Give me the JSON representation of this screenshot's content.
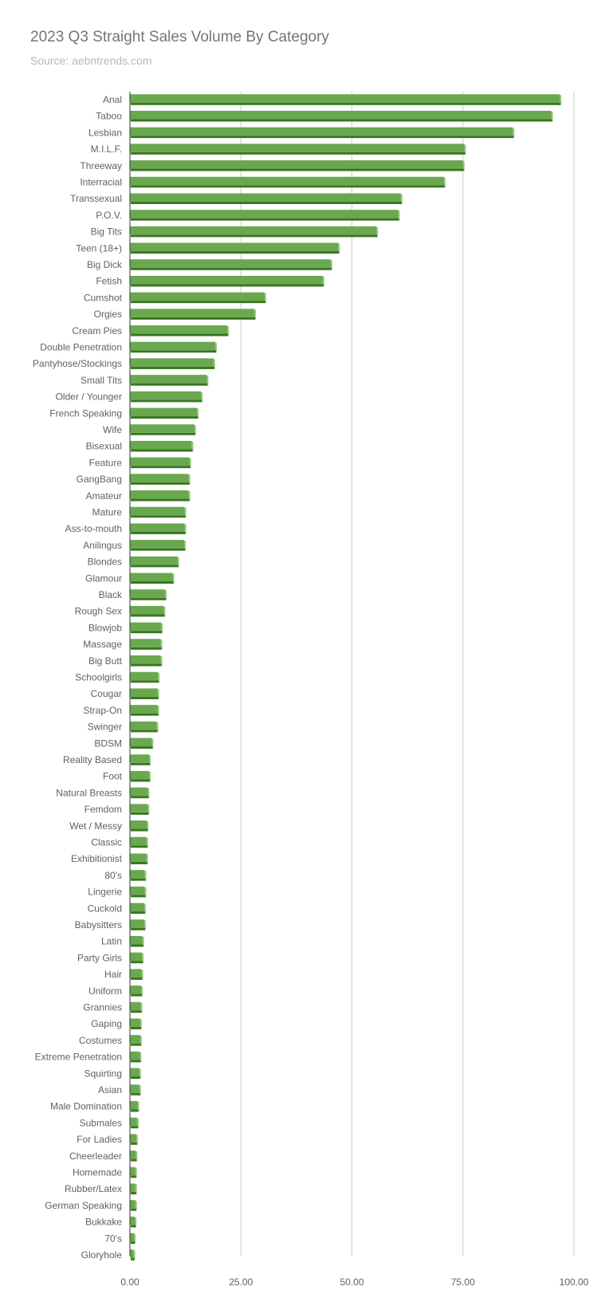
{
  "header": {
    "title": "2023 Q3 Straight Sales Volume By Category",
    "subtitle": "Source: aebntrends.com"
  },
  "colors": {
    "bar_face": "#6aa84f",
    "bar_shadow": "#38761d",
    "bar_highlight": "#93c47d",
    "grid": "#cccccc",
    "axis": "#333333"
  },
  "chart_data": {
    "type": "bar",
    "orientation": "horizontal",
    "title": "2023 Q3 Straight Sales Volume By Category",
    "subtitle": "Source: aebntrends.com",
    "xlabel": "",
    "ylabel": "",
    "xlim": [
      0,
      100
    ],
    "x_ticks": [
      "0.00",
      "25.00",
      "50.00",
      "75.00",
      "100.00"
    ],
    "x_tick_values": [
      0,
      25,
      50,
      75,
      100
    ],
    "grid": true,
    "legend": "none",
    "categories": [
      "Anal",
      "Taboo",
      "Lesbian",
      "M.I.L.F.",
      "Threeway",
      "Interracial",
      "Transsexual",
      "P.O.V.",
      "Big Tits",
      "Teen (18+)",
      "Big Dick",
      "Fetish",
      "Cumshot",
      "Orgies",
      "Cream Pies",
      "Double Penetration",
      "Pantyhose/Stockings",
      "Small Tits",
      "Older / Younger",
      "French Speaking",
      "Wife",
      "Bisexual",
      "Feature",
      "GangBang",
      "Amateur",
      "Mature",
      "Ass-to-mouth",
      "Anilingus",
      "Blondes",
      "Glamour",
      "Black",
      "Rough Sex",
      "Blowjob",
      "Massage",
      "Big Butt",
      "Schoolgirls",
      "Cougar",
      "Strap-On",
      "Swinger",
      "BDSM",
      "Reality Based",
      "Foot",
      "Natural Breasts",
      "Femdom",
      "Wet / Messy",
      "Classic",
      "Exhibitionist",
      "80's",
      "Lingerie",
      "Cuckold",
      "Babysitters",
      "Latin",
      "Party Girls",
      "Hair",
      "Uniform",
      "Grannies",
      "Gaping",
      "Costumes",
      "Extreme Penetration",
      "Squirting",
      "Asian",
      "Male Domination",
      "Submales",
      "For Ladies",
      "Cheerleader",
      "Homemade",
      "Rubber/Latex",
      "German Speaking",
      "Bukkake",
      "70's",
      "Gloryhole"
    ],
    "values": [
      96.8,
      94.9,
      86.2,
      75.3,
      75.0,
      70.7,
      61.0,
      60.4,
      55.5,
      46.9,
      45.2,
      43.4,
      30.3,
      28.0,
      21.9,
      19.2,
      18.8,
      17.3,
      16.0,
      15.1,
      14.5,
      13.9,
      13.4,
      13.2,
      13.2,
      12.3,
      12.3,
      12.2,
      10.7,
      9.6,
      7.9,
      7.6,
      7.0,
      6.9,
      6.9,
      6.3,
      6.2,
      6.2,
      6.0,
      4.9,
      4.3,
      4.3,
      4.0,
      4.0,
      3.8,
      3.7,
      3.7,
      3.3,
      3.3,
      3.2,
      3.2,
      2.8,
      2.7,
      2.6,
      2.5,
      2.4,
      2.3,
      2.3,
      2.2,
      2.1,
      2.1,
      1.7,
      1.6,
      1.4,
      1.3,
      1.2,
      1.2,
      1.2,
      1.1,
      0.9,
      0.8
    ]
  }
}
